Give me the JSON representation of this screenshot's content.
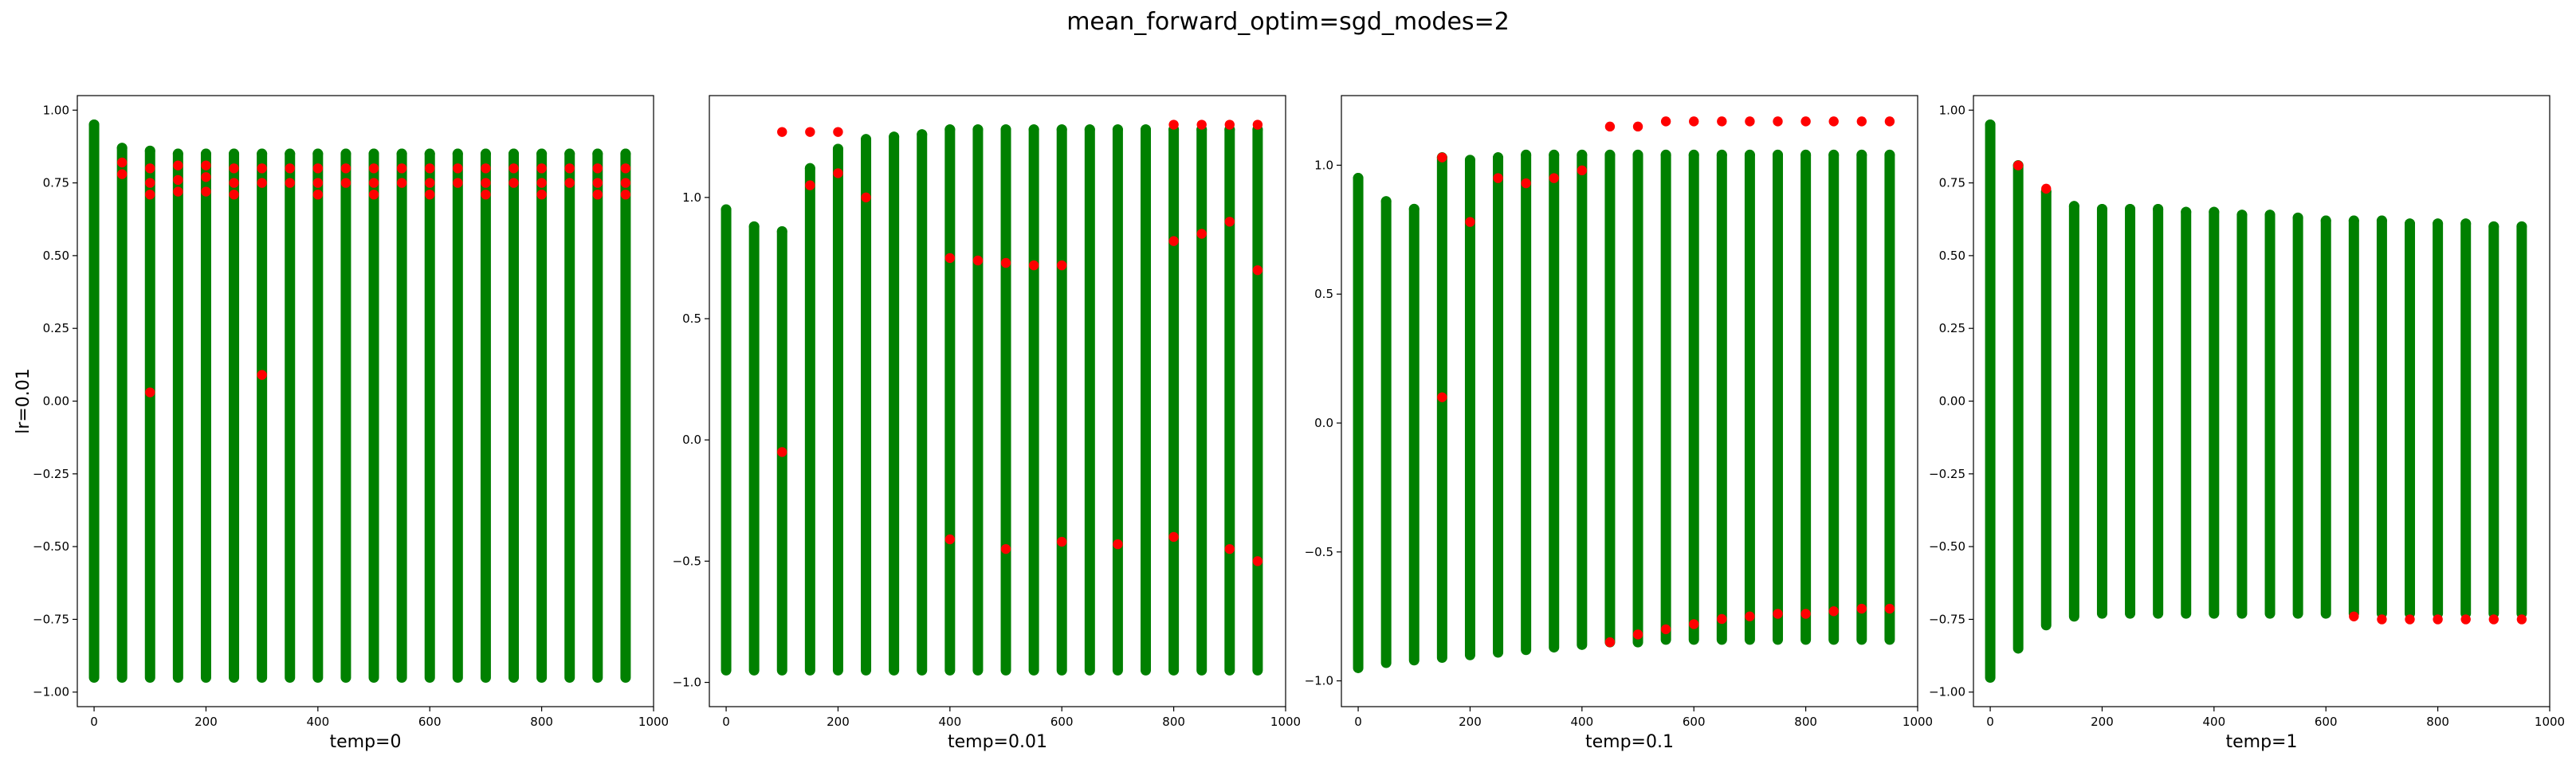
{
  "figure": {
    "title": "mean_forward_optim=sgd_modes=2",
    "ylabel": "lr=0.01"
  },
  "colors": {
    "point_primary": "#008000",
    "point_secondary": "#ff0000"
  },
  "chart_data": [
    {
      "type": "scatter",
      "xlabel": "temp=0",
      "xlim": [
        -30,
        1000
      ],
      "ylim": [
        -1.05,
        1.05
      ],
      "xticks": [
        0,
        200,
        400,
        600,
        800,
        1000
      ],
      "yticks": [
        -1.0,
        -0.75,
        -0.5,
        -0.25,
        0.0,
        0.25,
        0.5,
        0.75,
        1.0
      ],
      "ytick_labels": [
        "−1.00",
        "−0.75",
        "−0.50",
        "−0.25",
        "0.00",
        "0.25",
        "0.50",
        "0.75",
        "1.00"
      ],
      "x_positions": [
        0,
        50,
        100,
        150,
        200,
        250,
        300,
        350,
        400,
        450,
        500,
        550,
        600,
        650,
        700,
        750,
        800,
        850,
        900,
        950
      ],
      "columns": {
        "ymin": [
          -0.95,
          -0.95,
          -0.95,
          -0.95,
          -0.95,
          -0.95,
          -0.95,
          -0.95,
          -0.95,
          -0.95,
          -0.95,
          -0.95,
          -0.95,
          -0.95,
          -0.95,
          -0.95,
          -0.95,
          -0.95,
          -0.95,
          -0.95
        ],
        "ymax": [
          0.95,
          0.87,
          0.86,
          0.85,
          0.85,
          0.85,
          0.85,
          0.85,
          0.85,
          0.85,
          0.85,
          0.85,
          0.85,
          0.85,
          0.85,
          0.85,
          0.85,
          0.85,
          0.85,
          0.85
        ]
      },
      "red_points": [
        [
          50,
          0.82
        ],
        [
          50,
          0.78
        ],
        [
          100,
          0.8
        ],
        [
          100,
          0.75
        ],
        [
          100,
          0.71
        ],
        [
          100,
          0.03
        ],
        [
          150,
          0.81
        ],
        [
          150,
          0.76
        ],
        [
          150,
          0.72
        ],
        [
          200,
          0.81
        ],
        [
          200,
          0.77
        ],
        [
          200,
          0.72
        ],
        [
          250,
          0.8
        ],
        [
          250,
          0.75
        ],
        [
          250,
          0.71
        ],
        [
          300,
          0.8
        ],
        [
          300,
          0.75
        ],
        [
          300,
          0.09
        ],
        [
          350,
          0.8
        ],
        [
          350,
          0.75
        ],
        [
          400,
          0.8
        ],
        [
          400,
          0.75
        ],
        [
          400,
          0.71
        ],
        [
          450,
          0.8
        ],
        [
          450,
          0.75
        ],
        [
          500,
          0.8
        ],
        [
          500,
          0.75
        ],
        [
          500,
          0.71
        ],
        [
          550,
          0.8
        ],
        [
          550,
          0.75
        ],
        [
          600,
          0.8
        ],
        [
          600,
          0.75
        ],
        [
          600,
          0.71
        ],
        [
          650,
          0.8
        ],
        [
          650,
          0.75
        ],
        [
          700,
          0.8
        ],
        [
          700,
          0.75
        ],
        [
          700,
          0.71
        ],
        [
          750,
          0.8
        ],
        [
          750,
          0.75
        ],
        [
          800,
          0.8
        ],
        [
          800,
          0.75
        ],
        [
          800,
          0.71
        ],
        [
          850,
          0.8
        ],
        [
          850,
          0.75
        ],
        [
          900,
          0.8
        ],
        [
          900,
          0.75
        ],
        [
          900,
          0.71
        ],
        [
          950,
          0.8
        ],
        [
          950,
          0.75
        ],
        [
          950,
          0.71
        ]
      ]
    },
    {
      "type": "scatter",
      "xlabel": "temp=0.01",
      "xlim": [
        -30,
        1000
      ],
      "ylim": [
        -1.1,
        1.42
      ],
      "xticks": [
        0,
        200,
        400,
        600,
        800,
        1000
      ],
      "yticks": [
        -1.0,
        -0.5,
        0.0,
        0.5,
        1.0
      ],
      "ytick_labels": [
        "−1.0",
        "−0.5",
        "0.0",
        "0.5",
        "1.0"
      ],
      "x_positions": [
        0,
        50,
        100,
        150,
        200,
        250,
        300,
        350,
        400,
        450,
        500,
        550,
        600,
        650,
        700,
        750,
        800,
        850,
        900,
        950
      ],
      "columns": {
        "ymin": [
          -0.95,
          -0.95,
          -0.95,
          -0.95,
          -0.95,
          -0.95,
          -0.95,
          -0.95,
          -0.95,
          -0.95,
          -0.95,
          -0.95,
          -0.95,
          -0.95,
          -0.95,
          -0.95,
          -0.95,
          -0.95,
          -0.95,
          -0.95
        ],
        "ymax": [
          0.95,
          0.88,
          0.86,
          1.12,
          1.2,
          1.24,
          1.25,
          1.26,
          1.28,
          1.28,
          1.28,
          1.28,
          1.28,
          1.28,
          1.28,
          1.28,
          1.28,
          1.28,
          1.28,
          1.28
        ]
      },
      "red_points": [
        [
          100,
          1.27
        ],
        [
          150,
          1.27
        ],
        [
          200,
          1.27
        ],
        [
          150,
          1.05
        ],
        [
          200,
          1.1
        ],
        [
          250,
          1.0
        ],
        [
          400,
          0.75
        ],
        [
          450,
          0.74
        ],
        [
          500,
          0.73
        ],
        [
          550,
          0.72
        ],
        [
          600,
          0.72
        ],
        [
          800,
          1.3
        ],
        [
          850,
          1.3
        ],
        [
          900,
          1.3
        ],
        [
          950,
          1.3
        ],
        [
          800,
          0.82
        ],
        [
          850,
          0.85
        ],
        [
          900,
          0.9
        ],
        [
          950,
          0.7
        ],
        [
          100,
          -0.05
        ],
        [
          400,
          -0.41
        ],
        [
          500,
          -0.45
        ],
        [
          600,
          -0.42
        ],
        [
          700,
          -0.43
        ],
        [
          800,
          -0.4
        ],
        [
          900,
          -0.45
        ],
        [
          950,
          -0.5
        ]
      ]
    },
    {
      "type": "scatter",
      "xlabel": "temp=0.1",
      "xlim": [
        -30,
        1000
      ],
      "ylim": [
        -1.1,
        1.27
      ],
      "xticks": [
        0,
        200,
        400,
        600,
        800,
        1000
      ],
      "yticks": [
        -1.0,
        -0.5,
        0.0,
        0.5,
        1.0
      ],
      "ytick_labels": [
        "−1.0",
        "−0.5",
        "0.0",
        "0.5",
        "1.0"
      ],
      "x_positions": [
        0,
        50,
        100,
        150,
        200,
        250,
        300,
        350,
        400,
        450,
        500,
        550,
        600,
        650,
        700,
        750,
        800,
        850,
        900,
        950
      ],
      "columns": {
        "ymin": [
          -0.95,
          -0.93,
          -0.92,
          -0.91,
          -0.9,
          -0.89,
          -0.88,
          -0.87,
          -0.86,
          -0.85,
          -0.85,
          -0.84,
          -0.84,
          -0.84,
          -0.84,
          -0.84,
          -0.84,
          -0.84,
          -0.84,
          -0.84
        ],
        "ymax": [
          0.95,
          0.86,
          0.83,
          1.03,
          1.02,
          1.03,
          1.04,
          1.04,
          1.04,
          1.04,
          1.04,
          1.04,
          1.04,
          1.04,
          1.04,
          1.04,
          1.04,
          1.04,
          1.04,
          1.04
        ]
      },
      "red_points": [
        [
          150,
          1.03
        ],
        [
          200,
          0.78
        ],
        [
          250,
          0.95
        ],
        [
          300,
          0.93
        ],
        [
          350,
          0.95
        ],
        [
          400,
          0.98
        ],
        [
          450,
          1.15
        ],
        [
          500,
          1.15
        ],
        [
          550,
          1.17
        ],
        [
          600,
          1.17
        ],
        [
          650,
          1.17
        ],
        [
          700,
          1.17
        ],
        [
          750,
          1.17
        ],
        [
          800,
          1.17
        ],
        [
          850,
          1.17
        ],
        [
          900,
          1.17
        ],
        [
          950,
          1.17
        ],
        [
          150,
          0.1
        ],
        [
          450,
          -0.85
        ],
        [
          500,
          -0.82
        ],
        [
          550,
          -0.8
        ],
        [
          600,
          -0.78
        ],
        [
          650,
          -0.76
        ],
        [
          700,
          -0.75
        ],
        [
          750,
          -0.74
        ],
        [
          800,
          -0.74
        ],
        [
          850,
          -0.73
        ],
        [
          900,
          -0.72
        ],
        [
          950,
          -0.72
        ]
      ]
    },
    {
      "type": "scatter",
      "xlabel": "temp=1",
      "xlim": [
        -30,
        1000
      ],
      "ylim": [
        -1.05,
        1.05
      ],
      "xticks": [
        0,
        200,
        400,
        600,
        800,
        1000
      ],
      "yticks": [
        -1.0,
        -0.75,
        -0.5,
        -0.25,
        0.0,
        0.25,
        0.5,
        0.75,
        1.0
      ],
      "ytick_labels": [
        "−1.00",
        "−0.75",
        "−0.50",
        "−0.25",
        "0.00",
        "0.25",
        "0.50",
        "0.75",
        "1.00"
      ],
      "x_positions": [
        0,
        50,
        100,
        150,
        200,
        250,
        300,
        350,
        400,
        450,
        500,
        550,
        600,
        650,
        700,
        750,
        800,
        850,
        900,
        950
      ],
      "columns": {
        "ymin": [
          -0.95,
          -0.85,
          -0.77,
          -0.74,
          -0.73,
          -0.73,
          -0.73,
          -0.73,
          -0.73,
          -0.73,
          -0.73,
          -0.73,
          -0.73,
          -0.73,
          -0.73,
          -0.73,
          -0.73,
          -0.73,
          -0.73,
          -0.73
        ],
        "ymax": [
          0.95,
          0.81,
          0.72,
          0.67,
          0.66,
          0.66,
          0.66,
          0.65,
          0.65,
          0.64,
          0.64,
          0.63,
          0.62,
          0.62,
          0.62,
          0.61,
          0.61,
          0.61,
          0.6,
          0.6
        ]
      },
      "red_points": [
        [
          50,
          0.81
        ],
        [
          100,
          0.73
        ],
        [
          650,
          -0.74
        ],
        [
          700,
          -0.75
        ],
        [
          750,
          -0.75
        ],
        [
          800,
          -0.75
        ],
        [
          850,
          -0.75
        ],
        [
          900,
          -0.75
        ],
        [
          950,
          -0.75
        ]
      ]
    }
  ]
}
